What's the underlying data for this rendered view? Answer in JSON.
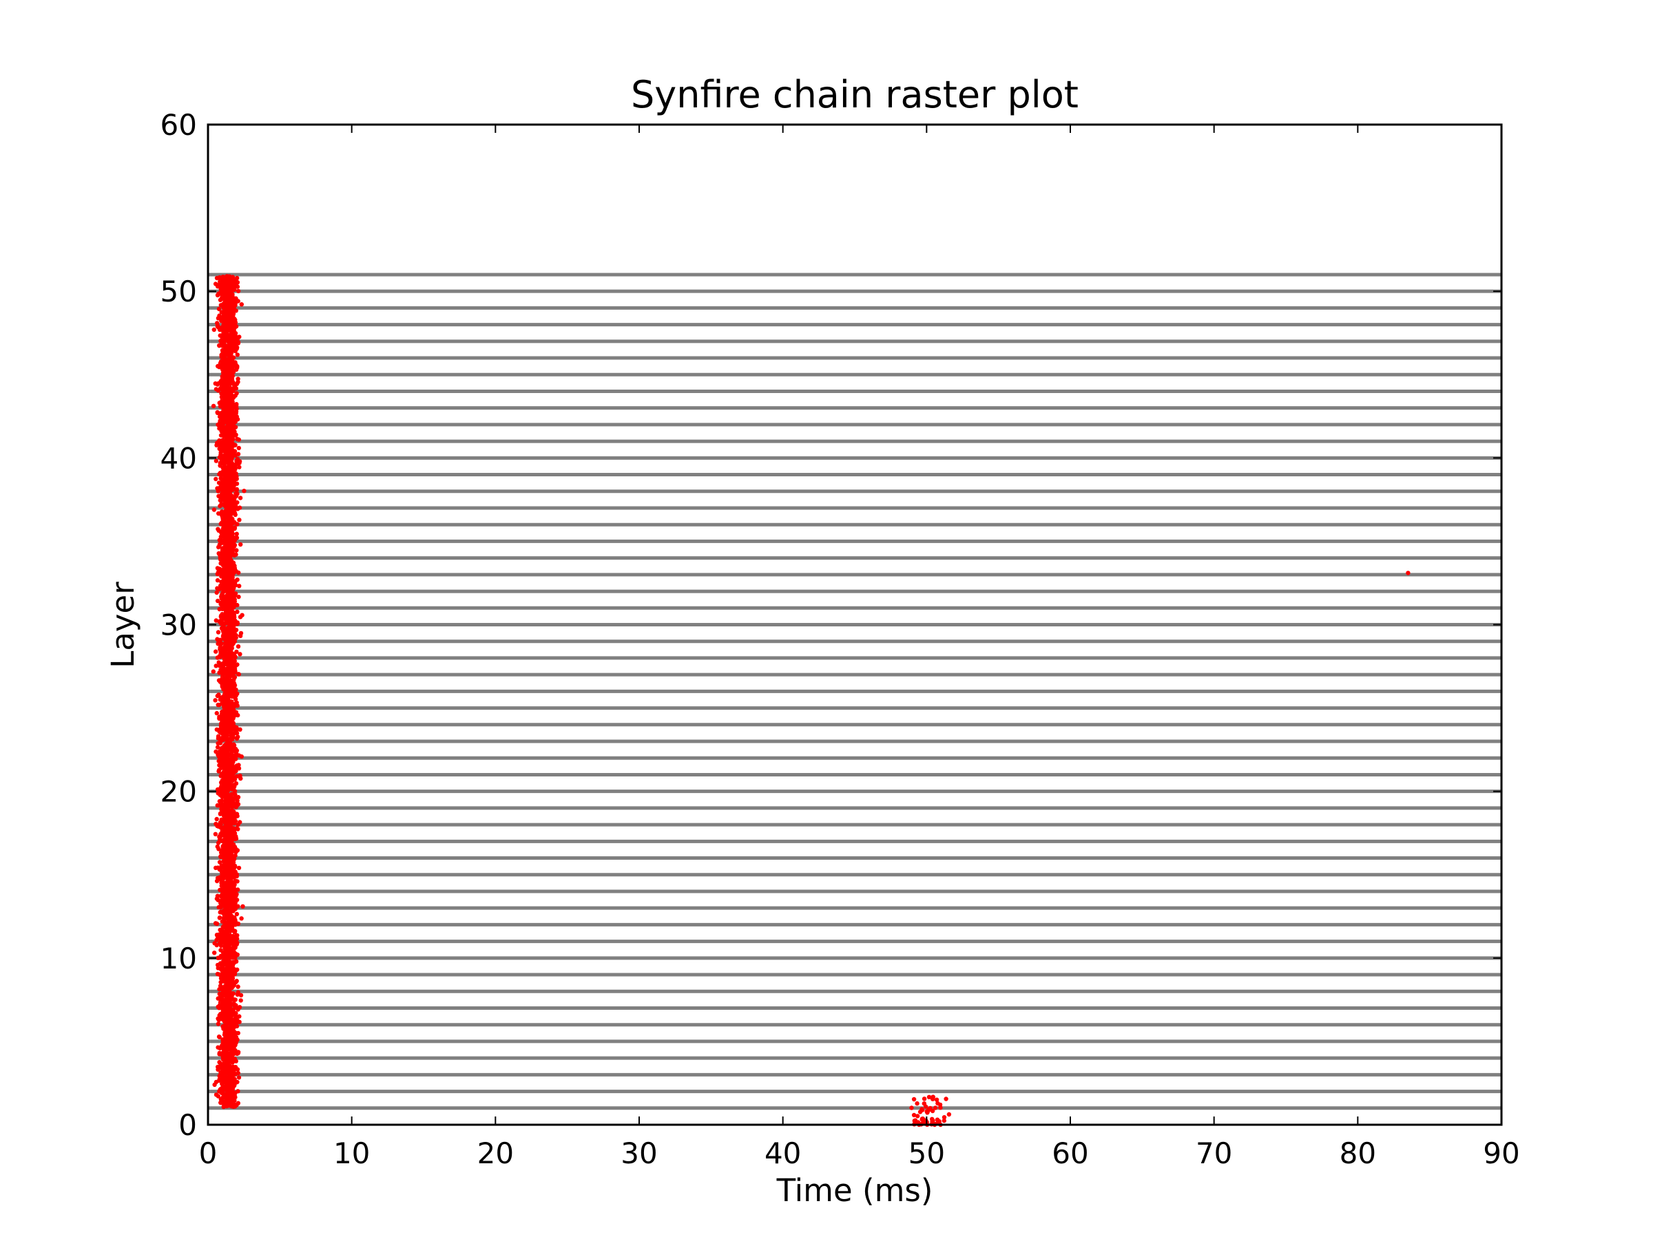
{
  "chart_data": {
    "type": "scatter",
    "title": "Synfire chain raster plot",
    "xlabel": "Time (ms)",
    "ylabel": "Layer",
    "xlim": [
      0,
      90
    ],
    "ylim": [
      0,
      60
    ],
    "xticks": [
      0,
      10,
      20,
      30,
      40,
      50,
      60,
      70,
      80,
      90
    ],
    "yticks": [
      0,
      10,
      20,
      30,
      40,
      50,
      60
    ],
    "grid": false,
    "legend": "none",
    "layer_lines": {
      "color": "#808080",
      "layers_from": 1,
      "layers_to": 51,
      "description_values": "grey horizontal band drawn at each integer layer from 1 to 51, spanning time 0 to 90 ms"
    },
    "series": [
      {
        "color": "#ff0000",
        "clusters": [
          {
            "layer_range": [
              1,
              51
            ],
            "time_range": [
              0,
              3.2
            ],
            "spike_time_mean": 1.4,
            "spike_time_spread": 0.55
          },
          {
            "layer_range": [
              0,
              2
            ],
            "time_range": [
              47.5,
              53
            ],
            "spike_time_mean": 50.2,
            "spike_time_spread": 1.2
          }
        ],
        "points": [
          {
            "x": 83.5,
            "y": 33.1
          }
        ]
      }
    ]
  }
}
